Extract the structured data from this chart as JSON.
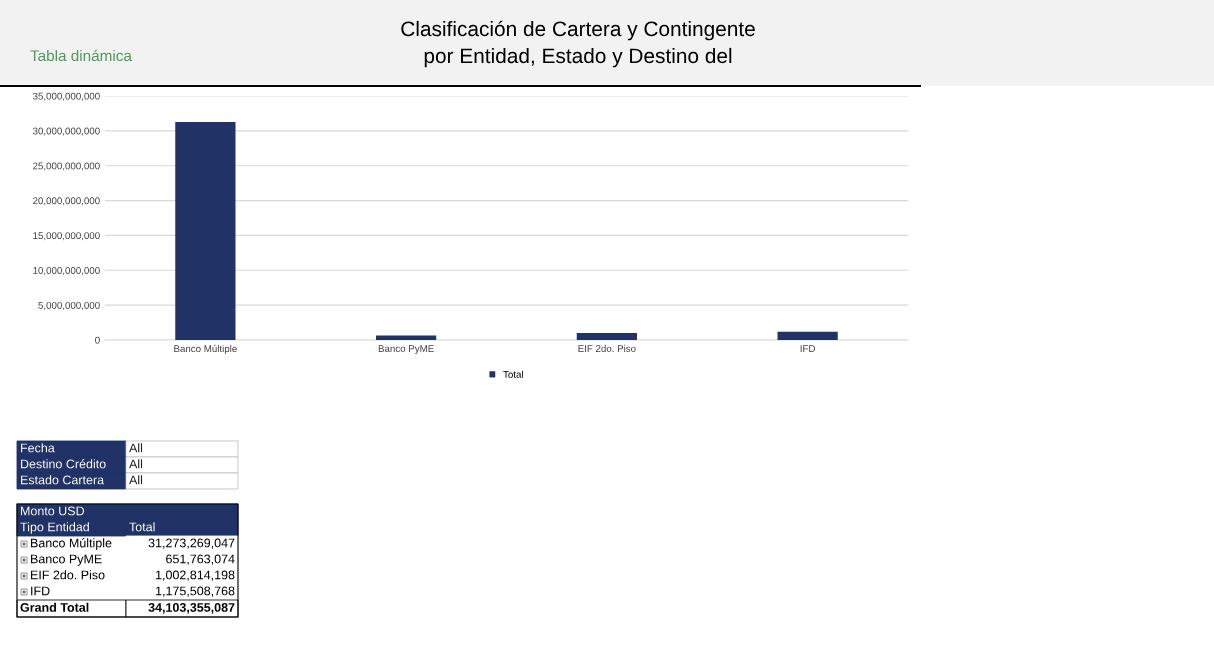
{
  "chart_data": {
    "type": "bar",
    "title": "Clasificación de Cartera y Contingente\npor Entidad, Estado y Destino del",
    "categories": [
      "Banco Múltiple",
      "Banco PyME",
      "EIF 2do. Piso",
      "IFD"
    ],
    "series": [
      {
        "name": "Total",
        "color": "#213266",
        "values": [
          31273269047,
          651763074,
          1002814198,
          1175508768
        ]
      }
    ],
    "ylim": [
      0,
      35000000000
    ],
    "yticks": [
      0,
      {
        "value": 5000000000,
        "label": "5,000,000,000"
      },
      {
        "value": 10000000000,
        "label": "10,000,000,000"
      },
      {
        "value": 15000000000,
        "label": "15,000,000,000"
      },
      {
        "value": 20000000000,
        "label": "20,000,000,000"
      },
      {
        "value": 25000000000,
        "label": "25,000,000,000"
      },
      {
        "value": 30000000000,
        "label": "30,000,000,000"
      },
      {
        "value": 35000000000,
        "label": "35,000,000,000"
      }
    ],
    "grid": "y",
    "legend": "bottom",
    "annotations": [
      "Tabla dinámica",
      "Fecha",
      "All",
      "Destino Crédito",
      "All",
      "Estado Cartera",
      "All",
      "Monto USD",
      "Tipo Entidad",
      "31,273,269,047",
      "651,763,074",
      "1,002,814,198",
      "1,175,508,768",
      "Grand Total",
      "34,103,355,087"
    ]
  }
}
